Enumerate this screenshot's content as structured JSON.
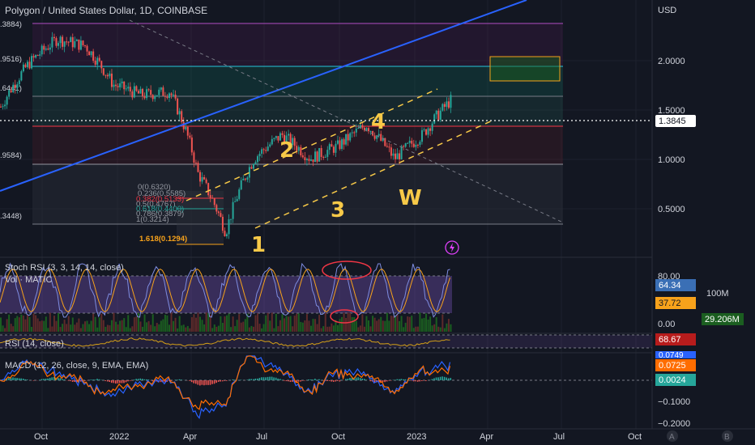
{
  "header": {
    "title": "Polygon / United States Dollar, 1D, COINBASE"
  },
  "price_axis": {
    "unit": "USD",
    "ticks": [
      "2.0000",
      "1.5000",
      "1.0000",
      "0.5000"
    ],
    "current_price": "1.3845"
  },
  "left_fib_labels": [
    ".3884)",
    ".9516)",
    ".6441)",
    ".9584)",
    ".3448)"
  ],
  "fib_box": {
    "levels": [
      {
        "text": "0(0.6320)",
        "color": "#9598a1"
      },
      {
        "text": "0.236(0.5585)",
        "color": "#9598a1"
      },
      {
        "text": "0.382(0.5133)",
        "color": "#f23645"
      },
      {
        "text": "0.5(0.4767)",
        "color": "#9598a1"
      },
      {
        "text": "0.618(0.4400)",
        "color": "#26a69a"
      },
      {
        "text": "0.786(0.3879)",
        "color": "#9598a1"
      },
      {
        "text": "1(0.3214)",
        "color": "#9598a1"
      },
      {
        "text": "1.618(0.1294)",
        "color": "#f7a21b"
      }
    ]
  },
  "waves": [
    "1",
    "2",
    "3",
    "4",
    "W"
  ],
  "indicators": {
    "stoch": {
      "label": "Stoch RSI (3, 3, 14, 14, close)",
      "k": "64.34",
      "d": "37.72",
      "ticks": [
        "80.00",
        "0.00"
      ]
    },
    "volume": {
      "label": "Vol · MATIC",
      "value": "29.206M",
      "tick": "100M"
    },
    "rsi": {
      "label": "RSI (14, close)",
      "value": "68.67"
    },
    "macd": {
      "label": "MACD (12, 26, close, 9, EMA, EMA)",
      "macd": "0.0749",
      "signal": "0.0725",
      "hist": "0.0024",
      "ticks": [
        "−0.1000",
        "−0.2000"
      ]
    }
  },
  "time_axis": [
    "Oct",
    "2022",
    "Apr",
    "Jul",
    "Oct",
    "2023",
    "Apr",
    "Jul",
    "Oct"
  ],
  "corner_buttons": [
    "A",
    "B"
  ],
  "colors": {
    "background": "#131722",
    "up": "#26a69a",
    "down": "#ef5350",
    "wave": "#f7c948",
    "trend": "#2962ff"
  },
  "chart_data": {
    "type": "line",
    "title": "Polygon / United States Dollar, 1D, COINBASE",
    "series": [
      {
        "name": "MATIC/USD",
        "x": [
          "2021-10-01",
          "2021-11-01",
          "2021-12-01",
          "2022-01-01",
          "2022-02-01",
          "2022-03-01",
          "2022-04-01",
          "2022-05-01",
          "2022-06-01",
          "2022-07-01",
          "2022-08-01",
          "2022-09-01",
          "2022-10-01",
          "2022-11-01",
          "2022-12-01",
          "2023-01-01",
          "2023-02-01"
        ],
        "values": [
          1.3,
          1.95,
          2.45,
          2.3,
          1.6,
          1.45,
          1.5,
          0.7,
          0.4,
          0.8,
          1.0,
          0.8,
          0.9,
          1.1,
          0.8,
          1.0,
          1.38
        ]
      }
    ],
    "ylim": [
      0.2,
      3.0
    ],
    "y_scale": "log"
  }
}
